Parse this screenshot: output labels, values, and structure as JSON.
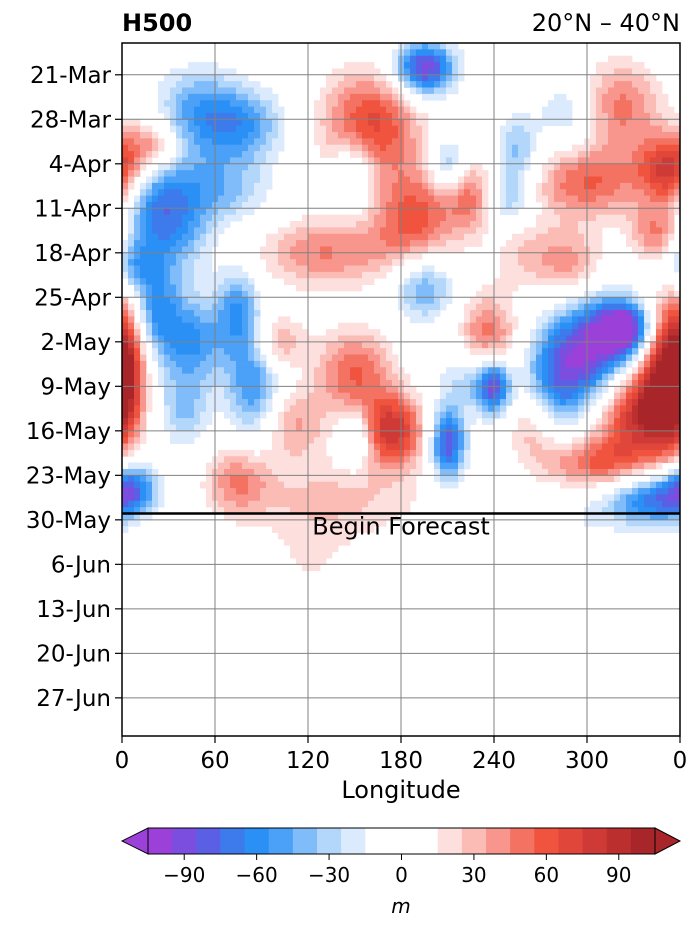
{
  "chart_data": {
    "type": "heatmap",
    "title_left": "H500",
    "title_right": "20°N – 40°N",
    "xlabel": "Longitude",
    "x_ticks": [
      "0",
      "60",
      "120",
      "180",
      "240",
      "300",
      "0"
    ],
    "x_range": [
      0,
      360
    ],
    "y_ticks": [
      "21-Mar",
      "28-Mar",
      "4-Apr",
      "11-Apr",
      "18-Apr",
      "25-Apr",
      "2-May",
      "9-May",
      "16-May",
      "23-May",
      "30-May",
      "6-Jun",
      "13-Jun",
      "20-Jun",
      "27-Jun"
    ],
    "y_range": [
      "16-Mar",
      "3-Jul"
    ],
    "grid": true,
    "forecast_start": "29-May",
    "annotation": "Begin Forecast",
    "colorbar": {
      "label": "m",
      "ticks": [
        "−90",
        "−60",
        "−30",
        "0",
        "30",
        "60",
        "90"
      ],
      "tick_values": [
        -90,
        -60,
        -30,
        0,
        30,
        60,
        90
      ],
      "range": [
        -105,
        105
      ],
      "levels": [
        -105,
        -95,
        -85,
        -75,
        -65,
        -55,
        -45,
        -35,
        -25,
        -15,
        0,
        15,
        25,
        35,
        45,
        55,
        65,
        75,
        85,
        95,
        105
      ],
      "colors": [
        "#9b40d8",
        "#7c4ee0",
        "#5a5fe6",
        "#3d7bec",
        "#2b90f5",
        "#4aa1f7",
        "#7fbcf9",
        "#b3d6fb",
        "#dceafd",
        "#ffffff",
        "#ffffff",
        "#fde0de",
        "#fbbcb5",
        "#f8958c",
        "#f47262",
        "#f0543f",
        "#e0463a",
        "#d03a36",
        "#bc2f2f",
        "#a82629"
      ],
      "extend_low": "#9b40d8",
      "extend_high": "#a82629"
    },
    "blobs": [
      {
        "lon": 195,
        "day": 4,
        "rl": 14,
        "rd": 3,
        "v": -95
      },
      {
        "lon": 50,
        "day": 11,
        "rl": 20,
        "rd": 5,
        "v": -50
      },
      {
        "lon": 80,
        "day": 13,
        "rl": 18,
        "rd": 4,
        "v": -45
      },
      {
        "lon": 160,
        "day": 13,
        "rl": 22,
        "rd": 6,
        "v": 70
      },
      {
        "lon": 290,
        "day": 11,
        "rl": 14,
        "rd": 4,
        "v": -35
      },
      {
        "lon": 320,
        "day": 10,
        "rl": 20,
        "rd": 5,
        "v": 50
      },
      {
        "lon": 355,
        "day": 20,
        "rl": 15,
        "rd": 4,
        "v": 80
      },
      {
        "lon": 20,
        "day": 16,
        "rl": 12,
        "rd": 3,
        "v": 45
      },
      {
        "lon": 60,
        "day": 23,
        "rl": 25,
        "rd": 4,
        "v": -40
      },
      {
        "lon": 20,
        "day": 26,
        "rl": 15,
        "rd": 6,
        "v": -55
      },
      {
        "lon": 190,
        "day": 28,
        "rl": 20,
        "rd": 6,
        "v": 60
      },
      {
        "lon": 210,
        "day": 19,
        "rl": 8,
        "rd": 3,
        "v": -45
      },
      {
        "lon": 150,
        "day": 20,
        "rl": 10,
        "rd": 4,
        "v": -40
      },
      {
        "lon": 300,
        "day": 22,
        "rl": 25,
        "rd": 4,
        "v": 55
      },
      {
        "lon": 255,
        "day": 17,
        "rl": 10,
        "rd": 4,
        "v": -40
      },
      {
        "lon": 250,
        "day": 25,
        "rl": 10,
        "rd": 3,
        "v": -35
      },
      {
        "lon": 225,
        "day": 24,
        "rl": 10,
        "rd": 4,
        "v": 40
      },
      {
        "lon": 345,
        "day": 30,
        "rl": 12,
        "rd": 3,
        "v": 45
      },
      {
        "lon": 130,
        "day": 33,
        "rl": 30,
        "rd": 4,
        "v": 45
      },
      {
        "lon": 5,
        "day": 35,
        "rl": 12,
        "rd": 3,
        "v": -40
      },
      {
        "lon": 40,
        "day": 30,
        "rl": 15,
        "rd": 5,
        "v": -30
      },
      {
        "lon": 195,
        "day": 38,
        "rl": 15,
        "rd": 4,
        "v": -55
      },
      {
        "lon": 290,
        "day": 35,
        "rl": 15,
        "rd": 4,
        "v": 40
      },
      {
        "lon": 260,
        "day": 33,
        "rl": 15,
        "rd": 4,
        "v": 25
      },
      {
        "lon": 20,
        "day": 42,
        "rl": 12,
        "rd": 5,
        "v": -55
      },
      {
        "lon": 75,
        "day": 42,
        "rl": 10,
        "rd": 5,
        "v": -50
      },
      {
        "lon": 235,
        "day": 47,
        "rl": 14,
        "rd": 5,
        "v": 60
      },
      {
        "lon": 305,
        "day": 48,
        "rl": 18,
        "rd": 6,
        "v": -85
      },
      {
        "lon": 325,
        "day": 45,
        "rl": 12,
        "rd": 3,
        "v": -95
      },
      {
        "lon": 2,
        "day": 50,
        "rl": 10,
        "rd": 8,
        "v": 80
      },
      {
        "lon": 45,
        "day": 47,
        "rl": 15,
        "rd": 5,
        "v": -55
      },
      {
        "lon": 100,
        "day": 47,
        "rl": 12,
        "rd": 3,
        "v": 40
      },
      {
        "lon": 150,
        "day": 52,
        "rl": 18,
        "rd": 5,
        "v": 55
      },
      {
        "lon": 225,
        "day": 52,
        "rl": 15,
        "rd": 4,
        "v": -40
      },
      {
        "lon": 85,
        "day": 54,
        "rl": 12,
        "rd": 6,
        "v": -55
      },
      {
        "lon": 240,
        "day": 54,
        "rl": 8,
        "rd": 3,
        "v": -85
      },
      {
        "lon": 280,
        "day": 53,
        "rl": 15,
        "rd": 6,
        "v": -60
      },
      {
        "lon": 350,
        "day": 53,
        "rl": 12,
        "rd": 8,
        "v": 80
      },
      {
        "lon": 330,
        "day": 58,
        "rl": 18,
        "rd": 5,
        "v": 75
      },
      {
        "lon": 175,
        "day": 61,
        "rl": 14,
        "rd": 4,
        "v": 80
      },
      {
        "lon": 210,
        "day": 63,
        "rl": 8,
        "rd": 4,
        "v": -85
      },
      {
        "lon": 150,
        "day": 62,
        "rl": 8,
        "rd": 3,
        "v": -40
      },
      {
        "lon": 265,
        "day": 60,
        "rl": 12,
        "rd": 4,
        "v": 35
      },
      {
        "lon": 110,
        "day": 60,
        "rl": 15,
        "rd": 4,
        "v": 35
      },
      {
        "lon": 40,
        "day": 58,
        "rl": 12,
        "rd": 4,
        "v": -35
      },
      {
        "lon": 75,
        "day": 69,
        "rl": 15,
        "rd": 4,
        "v": 45
      },
      {
        "lon": 5,
        "day": 70,
        "rl": 12,
        "rd": 3,
        "v": -75
      },
      {
        "lon": 340,
        "day": 72,
        "rl": 18,
        "rd": 3,
        "v": -70
      },
      {
        "lon": 305,
        "day": 66,
        "rl": 25,
        "rd": 3,
        "v": 55
      },
      {
        "lon": 145,
        "day": 72,
        "rl": 40,
        "rd": 5,
        "v": 25
      },
      {
        "lon": 120,
        "day": 83,
        "rl": 20,
        "rd": 9,
        "v": 15
      },
      {
        "lon": 320,
        "day": 90,
        "rl": 10,
        "rd": 5,
        "v": 15
      },
      {
        "lon": 230,
        "day": 87,
        "rl": 15,
        "rd": 12,
        "v": -15
      },
      {
        "lon": 300,
        "day": 75,
        "rl": 15,
        "rd": 4,
        "v": -15
      }
    ]
  }
}
